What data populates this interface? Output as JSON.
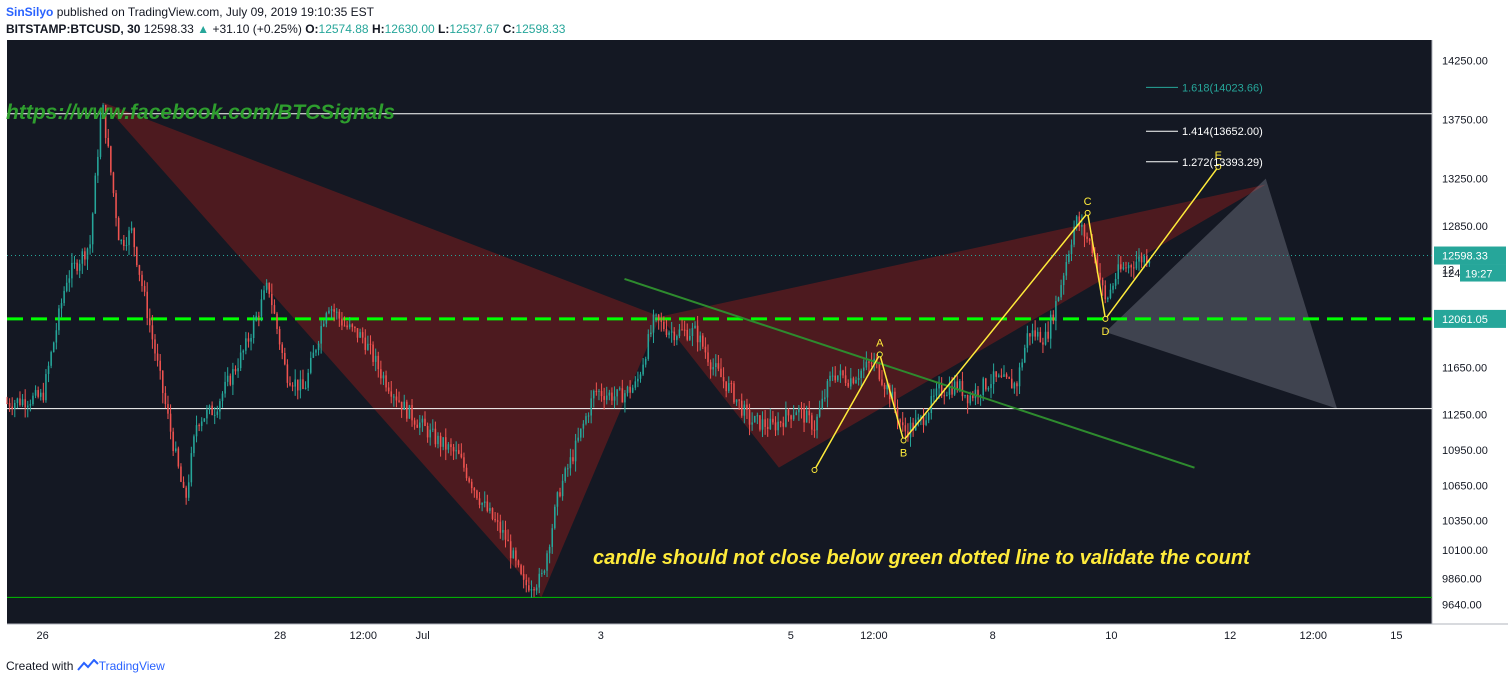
{
  "header": {
    "author": "SinSilyo",
    "published_text": "published on TradingView.com, July 09, 2019 19:10:35 EST",
    "symbol": "BITSTAMP:BTCUSD, 30",
    "last_price": "12598.33",
    "change": "+31.10 (+0.25%)",
    "open_label": "O:",
    "open": "12574.88",
    "high_label": "H:",
    "high": "12630.00",
    "low_label": "L:",
    "low": "12537.67",
    "close_label": "C:",
    "close": "12598.33"
  },
  "footer": {
    "created_with": "Created with",
    "brand": "TradingView"
  },
  "colors": {
    "background": "#141823",
    "up_candle": "#26a69a",
    "down_candle": "#ef5350",
    "pattern_fill": "#7b1e1e",
    "projection_fill": "#9aa0ad",
    "wave_line": "#ffeb3b",
    "trend_line": "#2e8b2e",
    "support_dashed": "#00ff00",
    "watermark_text": "#2e9e2e",
    "annotation_text": "#ffeb3b",
    "axis_badge": "#26a69a"
  },
  "chart_data": {
    "type": "candlestick",
    "symbol": "BITSTAMP:BTCUSD",
    "timeframe": "30",
    "ylim": [
      9500,
      14400
    ],
    "y_ticks": [
      14250.0,
      13750.0,
      13250.0,
      12850.0,
      12450.0,
      11650.0,
      11250.0,
      10950.0,
      10650.0,
      10350.0,
      10100.0,
      9860.0,
      9640.0
    ],
    "y_tick_labels": [
      "14250.00",
      "13750.00",
      "13250.00",
      "12850.00",
      "12450.00",
      "11650.00",
      "11250.00",
      "10950.00",
      "10650.00",
      "10350.00",
      "10100.00",
      "9860.00",
      "9640.00"
    ],
    "x_ticks": [
      {
        "label": "26",
        "t": 0.3
      },
      {
        "label": "28",
        "t": 2.3
      },
      {
        "label": "12:00",
        "t": 3.0
      },
      {
        "label": "Jul",
        "t": 3.5
      },
      {
        "label": "3",
        "t": 5.0
      },
      {
        "label": "5",
        "t": 6.6
      },
      {
        "label": "12:00",
        "t": 7.3
      },
      {
        "label": "8",
        "t": 8.3
      },
      {
        "label": "10",
        "t": 9.3
      },
      {
        "label": "12",
        "t": 10.3
      },
      {
        "label": "12:00",
        "t": 11.0
      },
      {
        "label": "15",
        "t": 11.7
      }
    ],
    "price_path": [
      [
        0.0,
        11350
      ],
      [
        0.3,
        11400
      ],
      [
        0.5,
        12400
      ],
      [
        0.7,
        12700
      ],
      [
        0.8,
        13900
      ],
      [
        0.95,
        12700
      ],
      [
        1.05,
        12800
      ],
      [
        1.3,
        11500
      ],
      [
        1.5,
        10500
      ],
      [
        1.6,
        11200
      ],
      [
        1.75,
        11300
      ],
      [
        2.0,
        11800
      ],
      [
        2.2,
        12350
      ],
      [
        2.35,
        11600
      ],
      [
        2.5,
        11450
      ],
      [
        2.7,
        12200
      ],
      [
        2.85,
        12000
      ],
      [
        3.0,
        11900
      ],
      [
        3.15,
        11600
      ],
      [
        3.35,
        11300
      ],
      [
        3.6,
        11050
      ],
      [
        3.8,
        10900
      ],
      [
        4.0,
        10500
      ],
      [
        4.2,
        10200
      ],
      [
        4.35,
        9800
      ],
      [
        4.5,
        9850
      ],
      [
        4.65,
        10600
      ],
      [
        4.8,
        11000
      ],
      [
        4.95,
        11450
      ],
      [
        5.15,
        11400
      ],
      [
        5.3,
        11500
      ],
      [
        5.45,
        12050
      ],
      [
        5.6,
        11950
      ],
      [
        5.8,
        11950
      ],
      [
        5.95,
        11650
      ],
      [
        6.1,
        11450
      ],
      [
        6.25,
        11200
      ],
      [
        6.45,
        11150
      ],
      [
        6.65,
        11300
      ],
      [
        6.8,
        11150
      ],
      [
        6.95,
        11600
      ],
      [
        7.1,
        11550
      ],
      [
        7.3,
        11700
      ],
      [
        7.45,
        11400
      ],
      [
        7.55,
        11100
      ],
      [
        7.7,
        11200
      ],
      [
        7.85,
        11450
      ],
      [
        8.0,
        11500
      ],
      [
        8.1,
        11400
      ],
      [
        8.3,
        11550
      ],
      [
        8.5,
        11500
      ],
      [
        8.6,
        11950
      ],
      [
        8.75,
        11900
      ],
      [
        8.85,
        12250
      ],
      [
        9.0,
        12900
      ],
      [
        9.15,
        12650
      ],
      [
        9.25,
        12200
      ],
      [
        9.35,
        12450
      ],
      [
        9.5,
        12550
      ],
      [
        9.62,
        12598
      ]
    ],
    "reference_lines": [
      {
        "price": 13800,
        "color": "#ffffff",
        "style": "solid"
      },
      {
        "price": 11300,
        "color": "#ffffff",
        "style": "solid"
      },
      {
        "price": 9700,
        "color": "#00c000",
        "style": "solid"
      },
      {
        "price": 12061.05,
        "color": "#00ff00",
        "style": "dashed"
      },
      {
        "price": 12598.33,
        "color": "#26a69a",
        "style": "dotted"
      }
    ],
    "fibonacci_levels": [
      {
        "label": "1.618(14023.66)",
        "price": 14023.66
      },
      {
        "label": "1.414(13652.00)",
        "price": 13652.0
      },
      {
        "label": "1.272(13393.29)",
        "price": 13393.29
      }
    ],
    "price_badges": [
      {
        "label": "12598.33",
        "price": 12598.33
      },
      {
        "label": "12061.05",
        "price": 12061.05
      }
    ],
    "countdown_label": "19:27",
    "countdown_partial": "12",
    "wave_points": [
      {
        "label": "",
        "t": 6.8,
        "price": 10780
      },
      {
        "label": "A",
        "t": 7.35,
        "price": 11760
      },
      {
        "label": "B",
        "t": 7.55,
        "price": 11030
      },
      {
        "label": "C",
        "t": 9.1,
        "price": 12960
      },
      {
        "label": "D",
        "t": 9.25,
        "price": 12061
      },
      {
        "label": "E",
        "t": 10.2,
        "price": 13350
      }
    ],
    "trend_line": [
      [
        5.2,
        12400
      ],
      [
        10.0,
        10800
      ]
    ],
    "harmonic_patterns": [
      {
        "points": [
          [
            0.8,
            13900
          ],
          [
            4.5,
            9700
          ],
          [
            5.5,
            12080
          ]
        ]
      },
      {
        "points": [
          [
            5.5,
            12080
          ],
          [
            6.5,
            10800
          ],
          [
            10.6,
            13200
          ]
        ]
      }
    ],
    "projection_triangle": [
      [
        9.25,
        11950
      ],
      [
        10.6,
        13250
      ],
      [
        11.2,
        11300
      ]
    ],
    "watermark": "https://www.facebook.com/BTCSignals",
    "annotation": "candle should not close below green dotted line to validate the count"
  }
}
